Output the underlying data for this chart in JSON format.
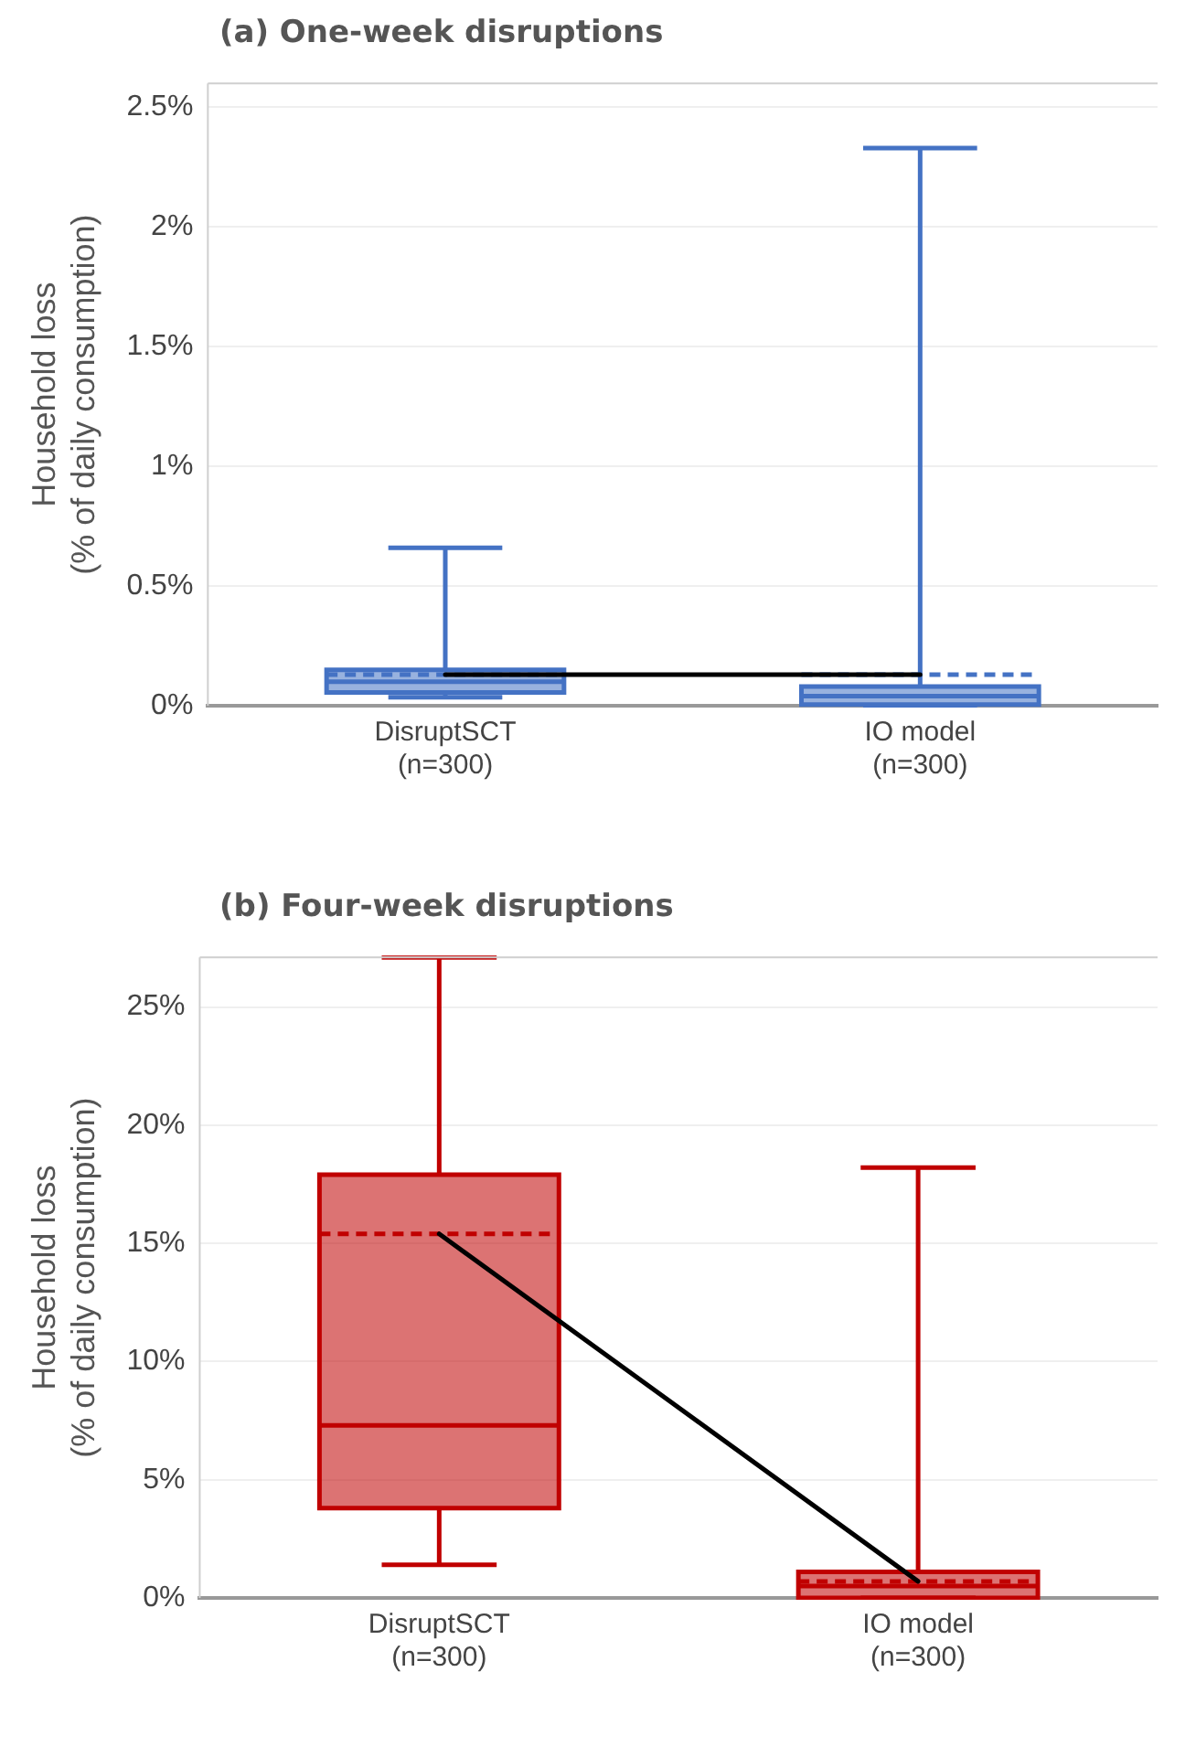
{
  "chart_data": [
    {
      "type": "box",
      "title": "(a) One-week disruptions",
      "ylabel": "Household loss\n(% of daily consumption)",
      "categories": [
        "DisruptSCT\n(n=300)",
        "IO model\n(n=300)"
      ],
      "series": [
        {
          "color": "#4472c4",
          "boxes": [
            {
              "low": 0.035,
              "q1": 0.055,
              "median": 0.1,
              "q3": 0.15,
              "high": 0.66,
              "mean": 0.13
            },
            {
              "low": 0,
              "q1": 0.005,
              "median": 0.04,
              "q3": 0.08,
              "high": 2.33,
              "mean": 0.13
            }
          ]
        },
        {
          "type": "line",
          "color": "#000000",
          "values": [
            0.13,
            0.13
          ]
        }
      ],
      "ylim": [
        0,
        2.6
      ],
      "yticks": [
        {
          "value": 0,
          "label": "0%"
        },
        {
          "value": 0.5,
          "label": "0.5%"
        },
        {
          "value": 1,
          "label": "1%"
        },
        {
          "value": 1.5,
          "label": "1.5%"
        },
        {
          "value": 2,
          "label": "2%"
        },
        {
          "value": 2.5,
          "label": "2.5%"
        }
      ],
      "grid": "y"
    },
    {
      "type": "box",
      "title": "(b) Four-week disruptions",
      "ylabel": "Household loss\n(% of daily consumption)",
      "categories": [
        "DisruptSCT\n(n=300)",
        "IO model\n(n=300)"
      ],
      "series": [
        {
          "color": "#c00000",
          "boxes": [
            {
              "low": 1.4,
              "q1": 3.8,
              "median": 7.3,
              "q3": 17.9,
              "high": 27.1,
              "mean": 15.4
            },
            {
              "low": 0,
              "q1": 0,
              "median": 0.5,
              "q3": 1.1,
              "high": 18.2,
              "mean": 0.7
            }
          ]
        },
        {
          "type": "line",
          "color": "#000000",
          "values": [
            15.4,
            0.7
          ]
        }
      ],
      "ylim": [
        0,
        27.1
      ],
      "yticks": [
        {
          "value": 0,
          "label": "0%"
        },
        {
          "value": 5,
          "label": "5%"
        },
        {
          "value": 10,
          "label": "10%"
        },
        {
          "value": 15,
          "label": "15%"
        },
        {
          "value": 20,
          "label": "20%"
        },
        {
          "value": 25,
          "label": "25%"
        }
      ],
      "grid": "y"
    }
  ]
}
